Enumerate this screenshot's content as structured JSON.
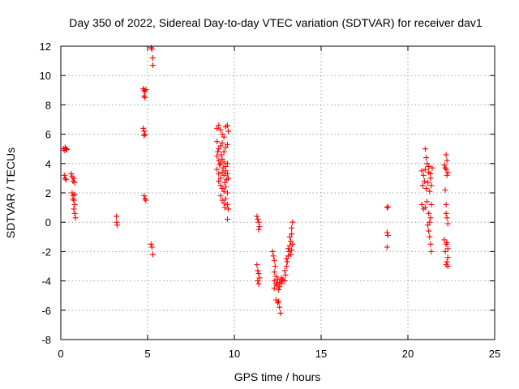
{
  "chart_data": {
    "type": "scatter",
    "title": "Day 350 of 2022, Sidereal Day-to-day VTEC variation (SDTVAR) for receiver dav1",
    "xlabel": "GPS time / hours",
    "ylabel": "SDTVAR / TECUs",
    "xlim": [
      0,
      25
    ],
    "ylim": [
      -8,
      12
    ],
    "xticks": [
      "0",
      "5",
      "10",
      "15",
      "20",
      "25"
    ],
    "yticks": [
      "-8",
      "-6",
      "-4",
      "-2",
      "0",
      "2",
      "4",
      "6",
      "8",
      "10",
      "12"
    ],
    "grid": true,
    "marker": "+",
    "color": "#ff0000",
    "series": [
      {
        "name": "SDTVAR",
        "points": [
          [
            0.15,
            5.0
          ],
          [
            0.2,
            4.9
          ],
          [
            0.25,
            5.1
          ],
          [
            0.3,
            5.0
          ],
          [
            0.35,
            4.95
          ],
          [
            0.2,
            3.2
          ],
          [
            0.25,
            3.0
          ],
          [
            0.3,
            2.9
          ],
          [
            0.6,
            3.3
          ],
          [
            0.65,
            3.1
          ],
          [
            0.7,
            2.8
          ],
          [
            0.75,
            3.0
          ],
          [
            0.8,
            2.7
          ],
          [
            0.65,
            2.0
          ],
          [
            0.7,
            1.8
          ],
          [
            0.75,
            1.5
          ],
          [
            0.8,
            1.2
          ],
          [
            0.75,
            0.9
          ],
          [
            0.8,
            0.6
          ],
          [
            0.85,
            0.3
          ],
          [
            0.8,
            1.9
          ],
          [
            0.7,
            1.6
          ],
          [
            3.2,
            0.4
          ],
          [
            3.22,
            0.0
          ],
          [
            3.25,
            -0.2
          ],
          [
            4.75,
            9.1
          ],
          [
            4.8,
            9.0
          ],
          [
            4.85,
            8.9
          ],
          [
            4.9,
            9.05
          ],
          [
            4.8,
            8.6
          ],
          [
            4.85,
            8.5
          ],
          [
            4.75,
            6.4
          ],
          [
            4.8,
            6.2
          ],
          [
            4.85,
            6.0
          ],
          [
            4.8,
            5.9
          ],
          [
            4.8,
            1.8
          ],
          [
            4.85,
            1.6
          ],
          [
            4.9,
            1.5
          ],
          [
            5.2,
            11.9
          ],
          [
            5.25,
            11.8
          ],
          [
            5.3,
            11.2
          ],
          [
            5.3,
            10.7
          ],
          [
            5.2,
            -1.5
          ],
          [
            5.25,
            -1.7
          ],
          [
            5.3,
            -2.2
          ],
          [
            9.0,
            6.4
          ],
          [
            9.1,
            6.6
          ],
          [
            9.2,
            6.3
          ],
          [
            9.3,
            6.0
          ],
          [
            9.4,
            5.8
          ],
          [
            9.5,
            6.5
          ],
          [
            9.6,
            6.6
          ],
          [
            9.65,
            6.2
          ],
          [
            9.0,
            5.5
          ],
          [
            9.1,
            5.0
          ],
          [
            9.2,
            5.2
          ],
          [
            9.3,
            5.4
          ],
          [
            9.4,
            4.8
          ],
          [
            9.5,
            5.1
          ],
          [
            9.6,
            5.3
          ],
          [
            9.0,
            4.5
          ],
          [
            9.1,
            4.2
          ],
          [
            9.2,
            4.0
          ],
          [
            9.3,
            4.3
          ],
          [
            9.4,
            4.1
          ],
          [
            9.5,
            3.8
          ],
          [
            9.6,
            4.0
          ],
          [
            9.0,
            3.6
          ],
          [
            9.1,
            3.3
          ],
          [
            9.2,
            3.0
          ],
          [
            9.3,
            3.4
          ],
          [
            9.4,
            3.2
          ],
          [
            9.5,
            3.5
          ],
          [
            9.6,
            3.3
          ],
          [
            9.65,
            3.0
          ],
          [
            9.1,
            2.8
          ],
          [
            9.2,
            2.5
          ],
          [
            9.3,
            2.3
          ],
          [
            9.4,
            2.1
          ],
          [
            9.5,
            2.4
          ],
          [
            9.6,
            2.0
          ],
          [
            9.2,
            1.8
          ],
          [
            9.3,
            1.5
          ],
          [
            9.4,
            1.3
          ],
          [
            9.5,
            1.6
          ],
          [
            9.6,
            1.2
          ],
          [
            9.65,
            0.9
          ],
          [
            9.6,
            0.2
          ],
          [
            9.45,
            1.0
          ],
          [
            9.05,
            4.8
          ],
          [
            9.15,
            3.9
          ],
          [
            9.25,
            4.6
          ],
          [
            9.35,
            3.7
          ],
          [
            9.45,
            2.7
          ],
          [
            9.55,
            2.9
          ],
          [
            11.3,
            0.4
          ],
          [
            11.35,
            0.2
          ],
          [
            11.4,
            0.0
          ],
          [
            11.45,
            -0.3
          ],
          [
            11.4,
            -0.5
          ],
          [
            11.3,
            -2.9
          ],
          [
            11.35,
            -3.3
          ],
          [
            11.4,
            -3.5
          ],
          [
            11.45,
            -3.8
          ],
          [
            11.35,
            -4.0
          ],
          [
            11.4,
            -4.2
          ],
          [
            12.2,
            -2.0
          ],
          [
            12.25,
            -2.3
          ],
          [
            12.3,
            -2.6
          ],
          [
            12.35,
            -3.0
          ],
          [
            12.3,
            -3.4
          ],
          [
            12.4,
            -3.7
          ],
          [
            12.3,
            -4.0
          ],
          [
            12.4,
            -4.2
          ],
          [
            12.5,
            -3.9
          ],
          [
            12.6,
            -4.1
          ],
          [
            12.7,
            -3.8
          ],
          [
            12.8,
            -3.9
          ],
          [
            12.9,
            -4.0
          ],
          [
            12.4,
            -5.3
          ],
          [
            12.5,
            -5.5
          ],
          [
            12.6,
            -5.8
          ],
          [
            12.65,
            -6.2
          ],
          [
            12.55,
            -5.4
          ],
          [
            12.3,
            -4.5
          ],
          [
            12.45,
            -4.3
          ],
          [
            12.55,
            -4.6
          ],
          [
            12.6,
            -4.4
          ],
          [
            12.7,
            -4.2
          ],
          [
            12.75,
            -4.0
          ],
          [
            12.9,
            -3.3
          ],
          [
            13.0,
            -3.0
          ],
          [
            13.05,
            -2.7
          ],
          [
            13.1,
            -2.3
          ],
          [
            13.15,
            -2.0
          ],
          [
            13.2,
            -1.6
          ],
          [
            13.25,
            -1.3
          ],
          [
            13.3,
            -0.8
          ],
          [
            13.3,
            -0.4
          ],
          [
            13.35,
            0.0
          ],
          [
            13.2,
            -1.0
          ],
          [
            13.1,
            -1.8
          ],
          [
            13.0,
            -2.5
          ],
          [
            12.95,
            -3.6
          ],
          [
            13.25,
            -2.2
          ],
          [
            13.3,
            -1.9
          ],
          [
            13.35,
            -1.5
          ],
          [
            18.8,
            1.0
          ],
          [
            18.85,
            1.05
          ],
          [
            18.8,
            -0.7
          ],
          [
            18.85,
            -0.9
          ],
          [
            18.8,
            -1.7
          ],
          [
            20.8,
            3.5
          ],
          [
            20.9,
            3.2
          ],
          [
            21.0,
            3.6
          ],
          [
            21.1,
            4.0
          ],
          [
            21.2,
            3.4
          ],
          [
            21.3,
            3.0
          ],
          [
            21.4,
            3.7
          ],
          [
            20.85,
            2.5
          ],
          [
            20.95,
            2.8
          ],
          [
            21.05,
            2.3
          ],
          [
            21.15,
            2.7
          ],
          [
            21.25,
            2.1
          ],
          [
            21.35,
            2.5
          ],
          [
            20.8,
            1.2
          ],
          [
            20.9,
            0.9
          ],
          [
            21.0,
            1.0
          ],
          [
            21.1,
            1.4
          ],
          [
            21.2,
            0.6
          ],
          [
            21.3,
            0.3
          ],
          [
            21.35,
            1.2
          ],
          [
            21.15,
            -0.2
          ],
          [
            21.2,
            -0.6
          ],
          [
            21.25,
            -1.0
          ],
          [
            21.3,
            -1.5
          ],
          [
            21.35,
            -2.0
          ],
          [
            21.25,
            0.0
          ],
          [
            21.0,
            5.0
          ],
          [
            21.05,
            4.4
          ],
          [
            21.2,
            3.8
          ],
          [
            21.3,
            3.3
          ],
          [
            22.1,
            3.9
          ],
          [
            22.2,
            3.6
          ],
          [
            22.3,
            3.4
          ],
          [
            22.15,
            3.7
          ],
          [
            22.25,
            3.2
          ],
          [
            22.2,
            4.6
          ],
          [
            22.25,
            4.2
          ],
          [
            22.15,
            2.2
          ],
          [
            22.2,
            1.2
          ],
          [
            22.25,
            0.3
          ],
          [
            22.3,
            -0.1
          ],
          [
            22.2,
            0.6
          ],
          [
            22.1,
            -1.2
          ],
          [
            22.2,
            -1.5
          ],
          [
            22.3,
            -1.8
          ],
          [
            22.25,
            -1.4
          ],
          [
            22.15,
            -2.0
          ],
          [
            22.3,
            -2.4
          ],
          [
            22.25,
            -2.7
          ],
          [
            22.2,
            -2.9
          ],
          [
            22.3,
            -3.0
          ]
        ]
      }
    ]
  }
}
